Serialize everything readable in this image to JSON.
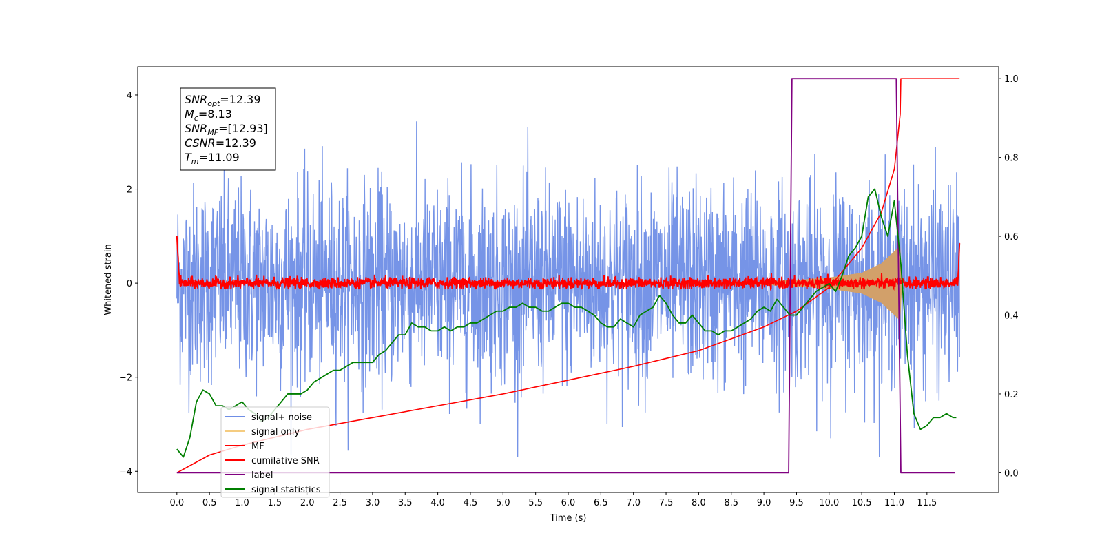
{
  "chart_data": {
    "type": "line",
    "xlabel": "Time (s)",
    "ylabel": "Whitened strain",
    "xlim": [
      -0.6,
      12.6
    ],
    "ylim": [
      -4.45,
      4.6
    ],
    "y2lim": [
      -0.05,
      1.03
    ],
    "x_ticks": [
      "0.0",
      "0.5",
      "1.0",
      "1.5",
      "2.0",
      "2.5",
      "3.0",
      "3.5",
      "4.0",
      "4.5",
      "5.0",
      "5.5",
      "6.0",
      "6.5",
      "7.0",
      "7.5",
      "8.0",
      "8.5",
      "9.0",
      "9.5",
      "10.0",
      "10.5",
      "11.0",
      "11.5"
    ],
    "y_ticks": [
      "−4",
      "−2",
      "0",
      "2",
      "4"
    ],
    "y2_ticks": [
      "0.0",
      "0.2",
      "0.4",
      "0.6",
      "0.8",
      "1.0"
    ],
    "stats_box": [
      {
        "base": "SNR",
        "sub": "opt",
        "value": "=12.39"
      },
      {
        "base": "M",
        "sub": "c",
        "value": "=8.13"
      },
      {
        "base": "SNR",
        "sub": "MF",
        "value": "=[12.93]"
      },
      {
        "base": "CSNR",
        "sub": "",
        "value": "=12.39"
      },
      {
        "base": "T",
        "sub": "m",
        "value": "=11.09"
      }
    ],
    "legend": [
      {
        "label": "signal+ noise",
        "color": "#6f8ee6"
      },
      {
        "label": "signal only",
        "color": "#f5cc80"
      },
      {
        "label": "MF",
        "color": "#ff0000"
      },
      {
        "label": "cumilative SNR",
        "color": "#ff0000"
      },
      {
        "label": "label",
        "color": "#800080"
      },
      {
        "label": "signal statistics",
        "color": "#007f00"
      }
    ],
    "series": [
      {
        "name": "signal+ noise",
        "axis": "left",
        "color": "#6f8ee6",
        "fs_hz": 200,
        "duration_s": 12.0,
        "envelope_p01_p99": [
          -2.7,
          2.7
        ],
        "max": 4.15,
        "min": -3.7
      },
      {
        "name": "signal only",
        "axis": "left",
        "color": "#d2a06a",
        "envelope_x": [
          8.0,
          8.5,
          9.0,
          9.5,
          10.0,
          10.5,
          10.8,
          11.0,
          11.09,
          11.12
        ],
        "envelope_amp": [
          0.01,
          0.02,
          0.04,
          0.07,
          0.12,
          0.22,
          0.42,
          0.68,
          0.8,
          0.0
        ]
      },
      {
        "name": "MF",
        "axis": "left",
        "color": "#ff0000",
        "baseline": 0.0,
        "noise_amp": 0.12,
        "start_x": 0.0,
        "start_y": 1.0,
        "end_x": 12.0,
        "end_y": 0.85
      },
      {
        "name": "cumilative SNR",
        "axis": "right",
        "color": "#ff0000",
        "x": [
          0.0,
          0.5,
          1.0,
          1.5,
          2.0,
          3.0,
          4.0,
          5.0,
          6.0,
          7.0,
          7.5,
          8.0,
          8.5,
          9.0,
          9.5,
          10.0,
          10.5,
          10.8,
          11.0,
          11.09,
          11.1,
          12.0
        ],
        "y": [
          0.0,
          0.045,
          0.07,
          0.09,
          0.11,
          0.14,
          0.17,
          0.2,
          0.235,
          0.27,
          0.29,
          0.31,
          0.34,
          0.37,
          0.41,
          0.47,
          0.57,
          0.66,
          0.77,
          0.91,
          1.0,
          1.0
        ]
      },
      {
        "name": "label",
        "axis": "right",
        "color": "#800080",
        "x": [
          0.0,
          9.38,
          9.43,
          11.03,
          11.1,
          11.93
        ],
        "y": [
          0.0,
          0.0,
          1.0,
          1.0,
          0.0,
          0.0
        ]
      },
      {
        "name": "signal statistics",
        "axis": "right",
        "color": "#007f00",
        "x": [
          0.0,
          0.1,
          0.2,
          0.3,
          0.4,
          0.5,
          0.6,
          0.7,
          0.8,
          0.9,
          1.0,
          1.1,
          1.2,
          1.3,
          1.4,
          1.5,
          1.6,
          1.7,
          1.8,
          1.9,
          2.0,
          2.1,
          2.2,
          2.3,
          2.4,
          2.5,
          2.6,
          2.7,
          2.8,
          2.9,
          3.0,
          3.1,
          3.2,
          3.3,
          3.4,
          3.5,
          3.6,
          3.7,
          3.8,
          3.9,
          4.0,
          4.1,
          4.2,
          4.3,
          4.4,
          4.5,
          4.6,
          4.7,
          4.8,
          4.9,
          5.0,
          5.1,
          5.2,
          5.3,
          5.4,
          5.5,
          5.6,
          5.7,
          5.8,
          5.9,
          6.0,
          6.1,
          6.2,
          6.3,
          6.4,
          6.5,
          6.6,
          6.7,
          6.8,
          6.9,
          7.0,
          7.1,
          7.2,
          7.3,
          7.4,
          7.5,
          7.6,
          7.7,
          7.8,
          7.9,
          8.0,
          8.1,
          8.2,
          8.3,
          8.4,
          8.5,
          8.6,
          8.7,
          8.8,
          8.9,
          9.0,
          9.1,
          9.2,
          9.3,
          9.4,
          9.5,
          9.6,
          9.7,
          9.8,
          9.9,
          10.0,
          10.1,
          10.2,
          10.3,
          10.4,
          10.5,
          10.6,
          10.7,
          10.8,
          10.9,
          11.0,
          11.1,
          11.2,
          11.3,
          11.4,
          11.5,
          11.6,
          11.7,
          11.8,
          11.9,
          11.95
        ],
        "y": [
          0.06,
          0.04,
          0.09,
          0.18,
          0.21,
          0.2,
          0.17,
          0.17,
          0.16,
          0.17,
          0.18,
          0.16,
          0.15,
          0.13,
          0.14,
          0.16,
          0.18,
          0.2,
          0.2,
          0.2,
          0.21,
          0.23,
          0.24,
          0.25,
          0.26,
          0.26,
          0.27,
          0.28,
          0.28,
          0.28,
          0.28,
          0.3,
          0.31,
          0.33,
          0.35,
          0.35,
          0.38,
          0.37,
          0.37,
          0.36,
          0.36,
          0.37,
          0.36,
          0.37,
          0.37,
          0.38,
          0.38,
          0.39,
          0.4,
          0.41,
          0.41,
          0.42,
          0.42,
          0.43,
          0.42,
          0.42,
          0.41,
          0.41,
          0.42,
          0.43,
          0.43,
          0.42,
          0.42,
          0.41,
          0.4,
          0.38,
          0.37,
          0.37,
          0.39,
          0.38,
          0.37,
          0.4,
          0.41,
          0.42,
          0.45,
          0.43,
          0.4,
          0.38,
          0.38,
          0.4,
          0.38,
          0.36,
          0.36,
          0.35,
          0.36,
          0.36,
          0.37,
          0.38,
          0.39,
          0.41,
          0.42,
          0.41,
          0.44,
          0.42,
          0.4,
          0.4,
          0.42,
          0.44,
          0.46,
          0.47,
          0.48,
          0.46,
          0.5,
          0.55,
          0.57,
          0.6,
          0.7,
          0.72,
          0.65,
          0.6,
          0.69,
          0.53,
          0.3,
          0.15,
          0.11,
          0.12,
          0.14,
          0.14,
          0.15,
          0.14,
          0.14
        ]
      }
    ]
  }
}
